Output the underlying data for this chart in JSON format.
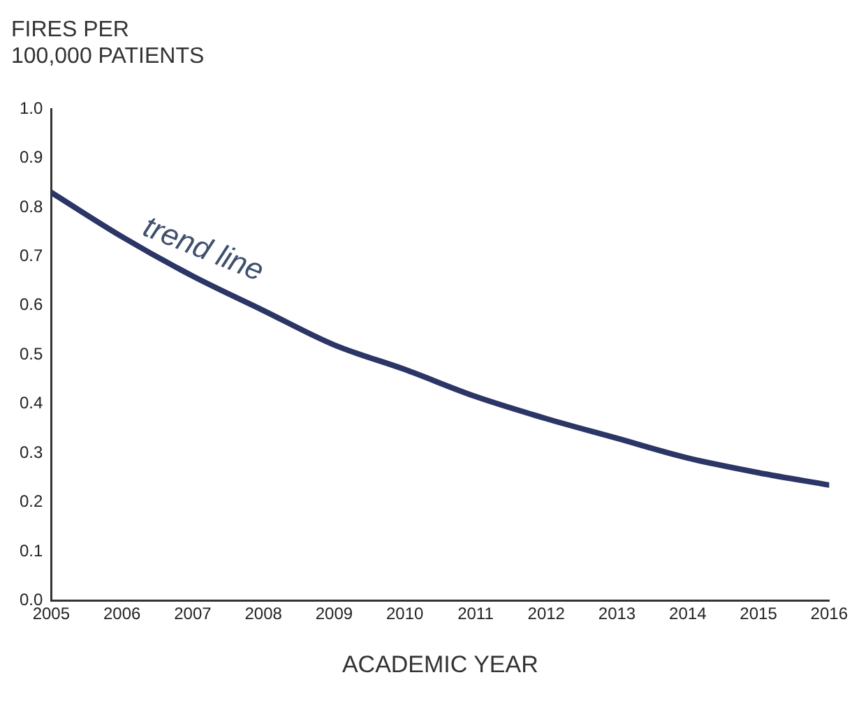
{
  "chart_data": {
    "type": "line",
    "ylabel": "FIRES PER\n100,000 PATIENTS",
    "xlabel": "ACADEMIC YEAR",
    "x": [
      2005,
      2006,
      2007,
      2008,
      2009,
      2010,
      2011,
      2012,
      2013,
      2014,
      2015,
      2016
    ],
    "series": [
      {
        "color": "#2b3566",
        "values": [
          0.83,
          0.74,
          0.66,
          0.59,
          0.52,
          0.47,
          0.415,
          0.37,
          0.33,
          0.29,
          0.26,
          0.235
        ]
      }
    ],
    "xlim": [
      2005,
      2016
    ],
    "xticks": [
      2005,
      2006,
      2007,
      2008,
      2009,
      2010,
      2011,
      2012,
      2013,
      2014,
      2015,
      2016
    ],
    "ylim": [
      0,
      1
    ],
    "yticks": [
      {
        "value": 0,
        "label": "0.0"
      },
      {
        "value": 0.1,
        "label": "0.1"
      },
      {
        "value": 0.2,
        "label": "0.2"
      },
      {
        "value": 0.3,
        "label": "0.3"
      },
      {
        "value": 0.4,
        "label": "0.4"
      },
      {
        "value": 0.5,
        "label": "0.5"
      },
      {
        "value": 0.6,
        "label": "0.6"
      },
      {
        "value": 0.7,
        "label": "0.7"
      },
      {
        "value": 0.8,
        "label": "0.8"
      },
      {
        "value": 0.9,
        "label": "0.9"
      },
      {
        "value": 1,
        "label": "1.0"
      }
    ],
    "annotations": [
      {
        "text": "trend line",
        "x": 2007,
        "y": 0.66
      }
    ],
    "grid": false,
    "legend": false,
    "marker": "none",
    "line_style": "solid"
  }
}
